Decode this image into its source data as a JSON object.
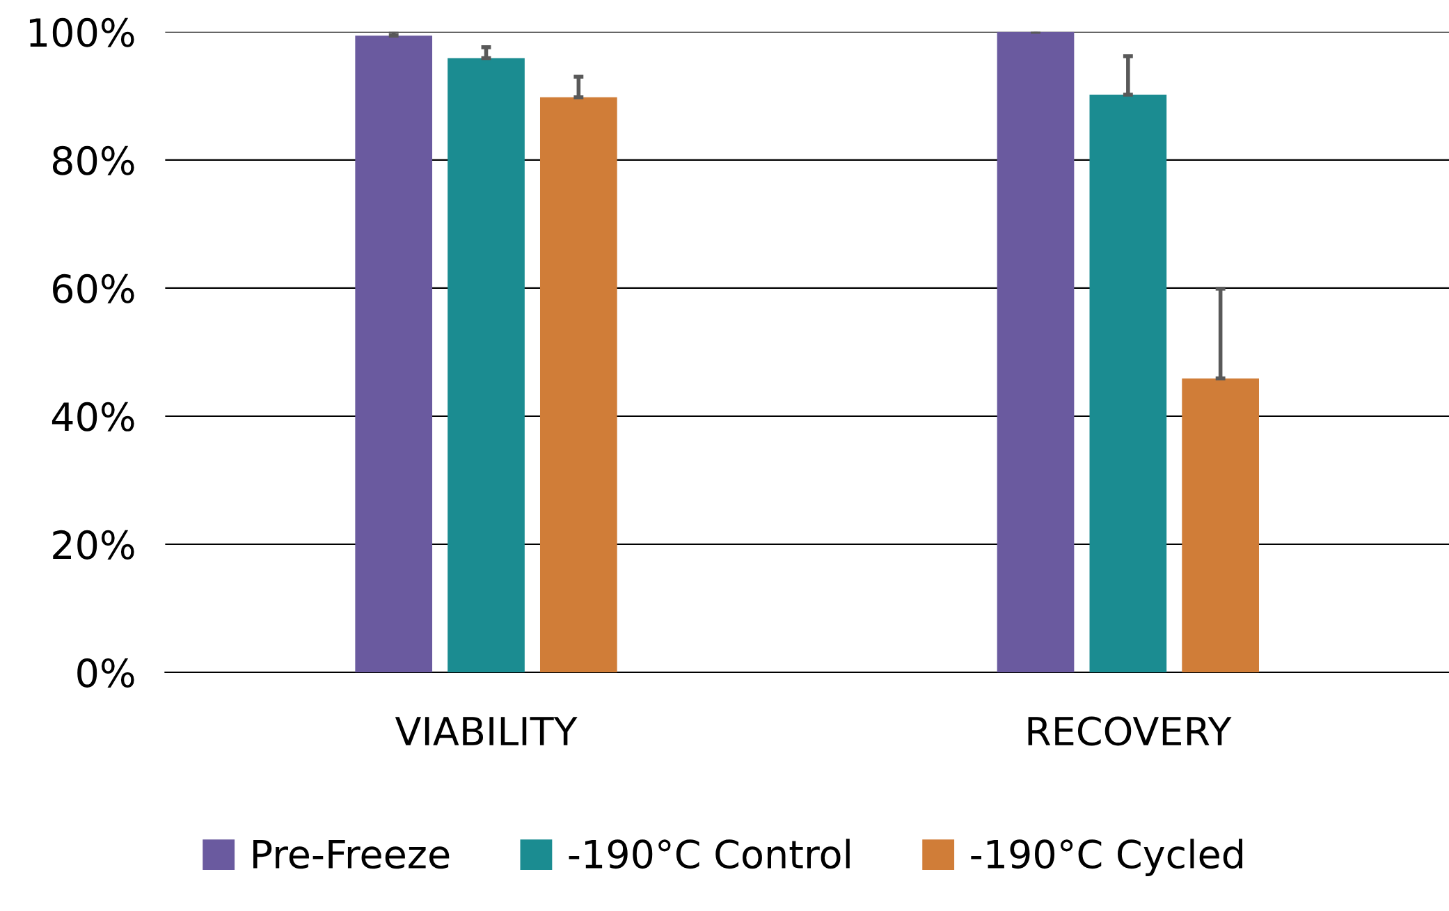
{
  "chart_data": {
    "type": "bar",
    "categories": [
      "VIABILITY",
      "RECOVERY"
    ],
    "series": [
      {
        "name": "Pre-Freeze",
        "color": "#6a5a9f",
        "values": [
          99.4,
          100
        ],
        "errors": [
          0.6,
          0.3
        ]
      },
      {
        "name": "-190°C Control",
        "color": "#1b8c91",
        "values": [
          95.9,
          90.2
        ],
        "errors": [
          1.7,
          6.0
        ]
      },
      {
        "name": "-190°C Cycled",
        "color": "#d07d38",
        "values": [
          89.8,
          45.9
        ],
        "errors": [
          3.2,
          14.0
        ]
      }
    ],
    "ylim": [
      0,
      100
    ],
    "yticks": [
      {
        "value": 0,
        "label": "0%"
      },
      {
        "value": 20,
        "label": "20%"
      },
      {
        "value": 40,
        "label": "40%"
      },
      {
        "value": 60,
        "label": "60%"
      },
      {
        "value": 80,
        "label": "80%"
      },
      {
        "value": 100,
        "label": "100%"
      }
    ],
    "grid": "y",
    "legend": "bottom"
  }
}
